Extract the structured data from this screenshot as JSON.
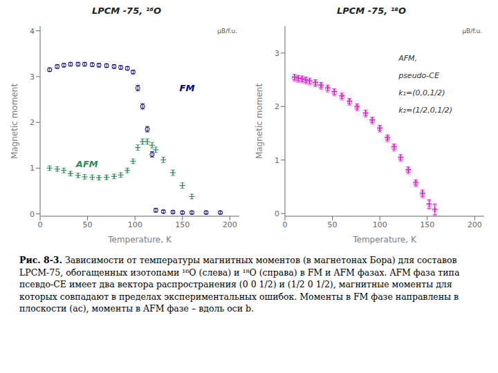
{
  "chart_data": [
    {
      "type": "scatter",
      "title": "LPCM -75, ¹⁶O",
      "xlabel": "Temperature, K",
      "ylabel": "Magnetic moment",
      "annotations": [
        "μB/f.u.",
        "FM",
        "AFM"
      ],
      "xlim": [
        0,
        210
      ],
      "xticks": [
        0,
        50,
        100,
        150,
        200
      ],
      "ylim": [
        -0.05,
        4.1
      ],
      "yticks": [
        0,
        1,
        2,
        3,
        4
      ],
      "grid": false,
      "series": [
        {
          "color": "#000080",
          "marker": "circle",
          "x": [
            10,
            18,
            25,
            32,
            40,
            47,
            55,
            62,
            70,
            78,
            85,
            92,
            98,
            103,
            108,
            113,
            118,
            122,
            130,
            140,
            150,
            160,
            175,
            190
          ],
          "values": [
            3.15,
            3.22,
            3.25,
            3.27,
            3.27,
            3.27,
            3.26,
            3.25,
            3.24,
            3.22,
            3.2,
            3.18,
            3.1,
            2.75,
            2.35,
            1.85,
            1.3,
            0.08,
            0.05,
            0.04,
            0.03,
            0.03,
            0.03,
            0.03
          ],
          "error": [
            0.04,
            0.04,
            0.04,
            0.04,
            0.04,
            0.04,
            0.04,
            0.04,
            0.04,
            0.04,
            0.04,
            0.04,
            0.04,
            0.06,
            0.06,
            0.06,
            0.06,
            0.04,
            0.03,
            0.03,
            0.03,
            0.03,
            0.03,
            0.03
          ]
        },
        {
          "color": "#2E8B57",
          "marker": "plus",
          "x": [
            10,
            18,
            25,
            32,
            40,
            47,
            55,
            62,
            70,
            78,
            85,
            92,
            98,
            103,
            108,
            113,
            118,
            122,
            130,
            140,
            150,
            160
          ],
          "values": [
            1.0,
            0.98,
            0.95,
            0.88,
            0.84,
            0.81,
            0.8,
            0.79,
            0.8,
            0.82,
            0.85,
            0.95,
            1.15,
            1.45,
            1.58,
            1.58,
            1.5,
            1.4,
            1.18,
            0.9,
            0.62,
            0.38
          ],
          "error": [
            0.05,
            0.05,
            0.05,
            0.05,
            0.05,
            0.05,
            0.05,
            0.05,
            0.05,
            0.05,
            0.05,
            0.05,
            0.05,
            0.06,
            0.06,
            0.06,
            0.06,
            0.06,
            0.06,
            0.06,
            0.06,
            0.05
          ]
        }
      ]
    },
    {
      "type": "scatter",
      "title": "LPCM -75, ¹⁸O",
      "xlabel": "Temperature, K",
      "ylabel": "Magnetic moment",
      "annotations": [
        "μB/f.u.",
        "AFM,",
        "pseudo-CE",
        "k₁=(0,0,1/2)",
        "k₂=(1/2,0,1/2)"
      ],
      "xlim": [
        0,
        210
      ],
      "xticks": [
        0,
        50,
        100,
        150,
        200
      ],
      "ylim": [
        -0.05,
        3.5
      ],
      "yticks": [
        0,
        1,
        2,
        3
      ],
      "grid": false,
      "series": [
        {
          "color": "#CC00AA",
          "marker": "plus",
          "x": [
            10,
            14,
            18,
            22,
            26,
            32,
            38,
            45,
            52,
            60,
            68,
            76,
            85,
            92,
            100,
            108,
            115,
            122,
            130,
            138,
            145,
            152,
            158
          ],
          "values": [
            2.55,
            2.53,
            2.52,
            2.5,
            2.48,
            2.45,
            2.4,
            2.35,
            2.28,
            2.2,
            2.1,
            2.0,
            1.88,
            1.75,
            1.6,
            1.42,
            1.25,
            1.05,
            0.82,
            0.58,
            0.38,
            0.18,
            0.08
          ],
          "error": [
            0.05,
            0.05,
            0.05,
            0.05,
            0.05,
            0.05,
            0.05,
            0.05,
            0.05,
            0.05,
            0.05,
            0.05,
            0.05,
            0.05,
            0.05,
            0.05,
            0.05,
            0.05,
            0.05,
            0.05,
            0.06,
            0.08,
            0.1
          ]
        },
        {
          "color": "#FF44FF",
          "marker": "diamond",
          "x": [
            10,
            14,
            18,
            22,
            26,
            32,
            38,
            45,
            52,
            60,
            68,
            76,
            85,
            92,
            100,
            108,
            115,
            122,
            130,
            138,
            145,
            152,
            158
          ],
          "values": [
            2.52,
            2.5,
            2.49,
            2.47,
            2.45,
            2.42,
            2.37,
            2.32,
            2.25,
            2.17,
            2.07,
            1.97,
            1.85,
            1.72,
            1.57,
            1.39,
            1.22,
            1.02,
            0.79,
            0.55,
            0.35,
            0.16,
            0.06
          ],
          "error": [
            0.05,
            0.05,
            0.05,
            0.05,
            0.05,
            0.05,
            0.05,
            0.05,
            0.05,
            0.05,
            0.05,
            0.05,
            0.05,
            0.05,
            0.05,
            0.05,
            0.05,
            0.05,
            0.05,
            0.05,
            0.06,
            0.08,
            0.1
          ]
        }
      ]
    }
  ],
  "caption": [
    "Рис. 8-3.",
    " Зависимости от температуры магнитных моментов (в магнетонах Бора) для составов LPCM-75, обогащенных изотопами ¹⁶O (слева) и ¹⁸O (справа) в FM и AFM фазах. AFM фаза типа псевдо-CE имеет два вектора распространения (0 0 1/2) и (1/2 0 1/2), магнитные моменты для которых совпадают в пределах экспериментальных ошибок. Моменты в FM фазе направлены в плоскости (ac), моменты в AFM фазе – вдоль оси b."
  ]
}
